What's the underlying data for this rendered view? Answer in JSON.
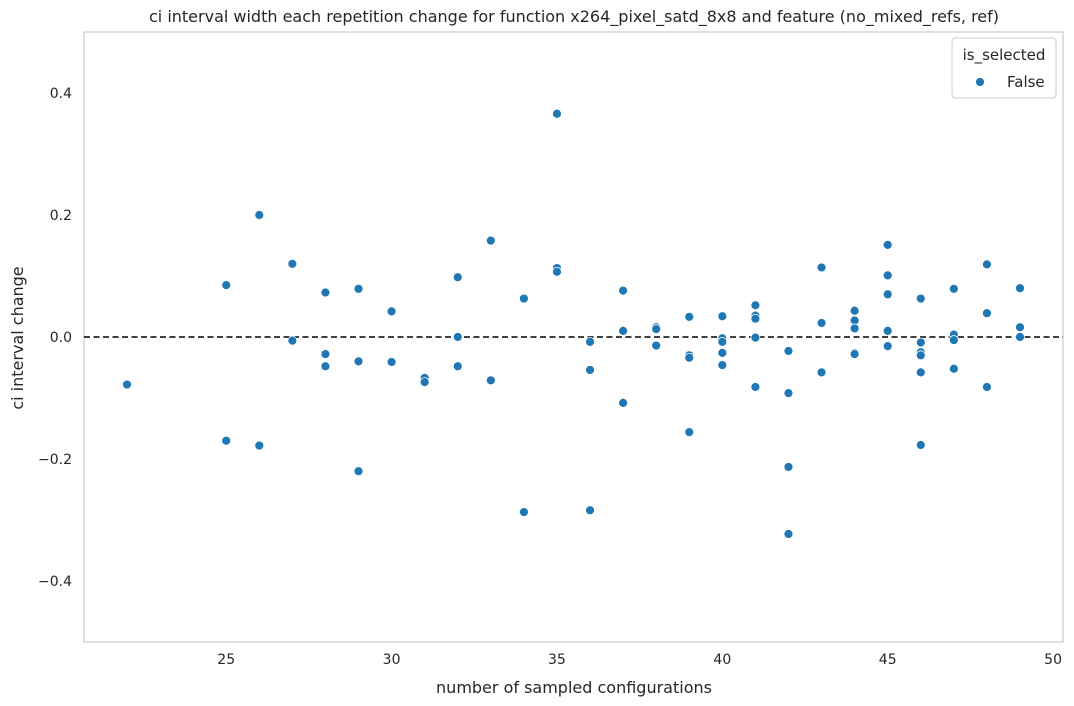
{
  "chart_data": {
    "type": "scatter",
    "title": "ci interval width each repetition change for function x264_pixel_satd_8x8 and feature (no_mixed_refs, ref)",
    "xlabel": "number of sampled configurations",
    "ylabel": "ci interval change",
    "xlim": [
      20.7,
      50.3
    ],
    "ylim": [
      -0.5,
      0.5
    ],
    "xticks": [
      25,
      30,
      35,
      40,
      45,
      50
    ],
    "xtick_labels": [
      "25",
      "30",
      "35",
      "40",
      "45",
      "50"
    ],
    "yticks": [
      -0.4,
      -0.2,
      0.0,
      0.2,
      0.4
    ],
    "ytick_labels": [
      "−0.4",
      "−0.2",
      "0.0",
      "0.2",
      "0.4"
    ],
    "reference_line": {
      "y": 0.0,
      "style": "dashed",
      "color": "#000000"
    },
    "grid": false,
    "legend": {
      "title": "is_selected",
      "placement": "top-right",
      "entries": [
        "False"
      ]
    },
    "series": [
      {
        "name": "False",
        "color": "#1f77b4",
        "points": [
          [
            22,
            -0.078
          ],
          [
            25,
            0.085
          ],
          [
            25,
            -0.17
          ],
          [
            26,
            0.2
          ],
          [
            26,
            -0.178
          ],
          [
            27,
            0.12
          ],
          [
            27,
            -0.006
          ],
          [
            28,
            0.073
          ],
          [
            28,
            -0.028
          ],
          [
            28,
            -0.048
          ],
          [
            29,
            0.079
          ],
          [
            29,
            -0.04
          ],
          [
            29,
            -0.22
          ],
          [
            30,
            0.042
          ],
          [
            30,
            -0.041
          ],
          [
            31,
            -0.067
          ],
          [
            31,
            -0.074
          ],
          [
            32,
            0.098
          ],
          [
            32,
            0.0
          ],
          [
            32,
            -0.048
          ],
          [
            33,
            0.158
          ],
          [
            33,
            -0.071
          ],
          [
            34,
            0.063
          ],
          [
            34,
            -0.287
          ],
          [
            35,
            0.366
          ],
          [
            35,
            0.113
          ],
          [
            35,
            0.107
          ],
          [
            36,
            -0.008
          ],
          [
            36,
            -0.054
          ],
          [
            36,
            -0.284
          ],
          [
            37,
            0.076
          ],
          [
            37,
            0.01
          ],
          [
            37,
            -0.108
          ],
          [
            38,
            0.016
          ],
          [
            38,
            0.013
          ],
          [
            38,
            -0.014
          ],
          [
            39,
            0.033
          ],
          [
            39,
            -0.03
          ],
          [
            39,
            -0.034
          ],
          [
            39,
            -0.156
          ],
          [
            40,
            0.034
          ],
          [
            40,
            -0.002
          ],
          [
            40,
            -0.008
          ],
          [
            40,
            -0.026
          ],
          [
            40,
            -0.046
          ],
          [
            41,
            0.052
          ],
          [
            41,
            0.035
          ],
          [
            41,
            0.03
          ],
          [
            41,
            -0.001
          ],
          [
            41,
            -0.082
          ],
          [
            42,
            -0.023
          ],
          [
            42,
            -0.092
          ],
          [
            42,
            -0.213
          ],
          [
            42,
            -0.323
          ],
          [
            43,
            0.114
          ],
          [
            43,
            0.023
          ],
          [
            43,
            -0.058
          ],
          [
            44,
            0.043
          ],
          [
            44,
            0.027
          ],
          [
            44,
            0.014
          ],
          [
            44,
            -0.026
          ],
          [
            44,
            -0.028
          ],
          [
            45,
            0.151
          ],
          [
            45,
            0.101
          ],
          [
            45,
            0.07
          ],
          [
            45,
            0.01
          ],
          [
            45,
            -0.015
          ],
          [
            46,
            0.063
          ],
          [
            46,
            -0.009
          ],
          [
            46,
            -0.025
          ],
          [
            46,
            -0.03
          ],
          [
            46,
            -0.058
          ],
          [
            46,
            -0.177
          ],
          [
            47,
            0.079
          ],
          [
            47,
            0.004
          ],
          [
            47,
            -0.005
          ],
          [
            47,
            -0.052
          ],
          [
            48,
            0.119
          ],
          [
            48,
            0.039
          ],
          [
            48,
            -0.082
          ],
          [
            49,
            0.08
          ],
          [
            49,
            0.016
          ],
          [
            49,
            0.0
          ]
        ]
      }
    ]
  }
}
